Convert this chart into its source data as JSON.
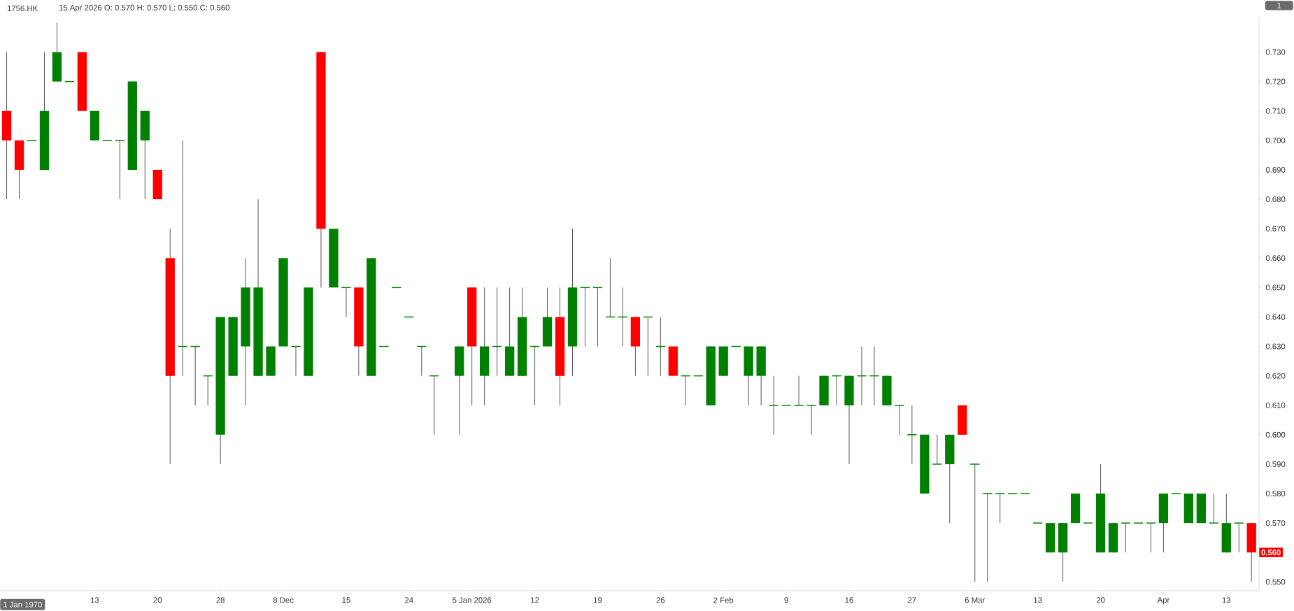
{
  "chart_data": {
    "type": "candlestick",
    "title": "1756.HK",
    "subtitle": "15 Apr 2026  O: 0.570  H: 0.570  L: 0.550  C: 0.560",
    "categories": [
      null,
      null,
      null,
      null,
      null,
      null,
      null,
      "13",
      null,
      null,
      null,
      null,
      "20",
      null,
      null,
      null,
      null,
      "28",
      null,
      null,
      null,
      null,
      "8 Dec",
      null,
      null,
      null,
      null,
      "15",
      null,
      null,
      null,
      null,
      "24",
      null,
      null,
      null,
      null,
      "5 Jan 2026",
      null,
      null,
      null,
      null,
      "12",
      null,
      null,
      null,
      null,
      "19",
      null,
      null,
      null,
      null,
      "26",
      null,
      null,
      null,
      null,
      "2 Feb",
      null,
      null,
      null,
      null,
      "9",
      null,
      null,
      null,
      null,
      "16",
      null,
      null,
      null,
      null,
      "27",
      null,
      null,
      null,
      null,
      "6 Mar",
      null,
      null,
      null,
      null,
      "13",
      null,
      null,
      null,
      null,
      "20",
      null,
      null,
      null,
      null,
      "Apr",
      null,
      null,
      null,
      null,
      "13",
      null,
      null
    ],
    "ohlc": [
      [
        0.71,
        0.73,
        0.68,
        0.7
      ],
      [
        0.7,
        0.7,
        0.68,
        0.69
      ],
      [
        0.7,
        0.7,
        0.7,
        0.7
      ],
      [
        0.69,
        0.73,
        0.69,
        0.71
      ],
      [
        0.72,
        0.74,
        0.72,
        0.73
      ],
      [
        0.72,
        0.72,
        0.72,
        0.72
      ],
      [
        0.73,
        0.73,
        0.71,
        0.71
      ],
      [
        0.7,
        0.71,
        0.7,
        0.71
      ],
      [
        0.7,
        0.7,
        0.7,
        0.7
      ],
      [
        0.7,
        0.7,
        0.68,
        0.7
      ],
      [
        0.69,
        0.72,
        0.69,
        0.72
      ],
      [
        0.7,
        0.71,
        0.68,
        0.71
      ],
      [
        0.69,
        0.69,
        0.68,
        0.68
      ],
      [
        0.66,
        0.67,
        0.59,
        0.62
      ],
      [
        0.63,
        0.7,
        0.62,
        0.63
      ],
      [
        0.63,
        0.63,
        0.61,
        0.63
      ],
      [
        0.62,
        0.62,
        0.61,
        0.62
      ],
      [
        0.6,
        0.64,
        0.59,
        0.64
      ],
      [
        0.62,
        0.64,
        0.62,
        0.64
      ],
      [
        0.63,
        0.66,
        0.61,
        0.65
      ],
      [
        0.62,
        0.68,
        0.62,
        0.65
      ],
      [
        0.62,
        0.63,
        0.62,
        0.63
      ],
      [
        0.63,
        0.66,
        0.63,
        0.66
      ],
      [
        0.63,
        0.63,
        0.62,
        0.63
      ],
      [
        0.62,
        0.65,
        0.62,
        0.65
      ],
      [
        0.73,
        0.73,
        0.65,
        0.67
      ],
      [
        0.65,
        0.67,
        0.65,
        0.67
      ],
      [
        0.65,
        0.65,
        0.64,
        0.65
      ],
      [
        0.65,
        0.65,
        0.62,
        0.63
      ],
      [
        0.62,
        0.66,
        0.62,
        0.66
      ],
      [
        0.63,
        0.63,
        0.63,
        0.63
      ],
      [
        0.65,
        0.65,
        0.65,
        0.65
      ],
      [
        0.64,
        0.64,
        0.64,
        0.64
      ],
      [
        0.63,
        0.63,
        0.62,
        0.63
      ],
      [
        0.62,
        0.62,
        0.6,
        0.62
      ],
      null,
      [
        0.62,
        0.63,
        0.6,
        0.63
      ],
      [
        0.65,
        0.65,
        0.61,
        0.63
      ],
      [
        0.62,
        0.65,
        0.61,
        0.63
      ],
      [
        0.63,
        0.65,
        0.62,
        0.63
      ],
      [
        0.62,
        0.65,
        0.62,
        0.63
      ],
      [
        0.62,
        0.65,
        0.62,
        0.64
      ],
      [
        0.63,
        0.63,
        0.61,
        0.63
      ],
      [
        0.63,
        0.65,
        0.63,
        0.64
      ],
      [
        0.64,
        0.65,
        0.61,
        0.62
      ],
      [
        0.63,
        0.67,
        0.62,
        0.65
      ],
      [
        0.65,
        0.65,
        0.63,
        0.65
      ],
      [
        0.65,
        0.65,
        0.63,
        0.65
      ],
      [
        0.64,
        0.66,
        0.64,
        0.64
      ],
      [
        0.64,
        0.65,
        0.63,
        0.64
      ],
      [
        0.64,
        0.64,
        0.62,
        0.63
      ],
      [
        0.64,
        0.64,
        0.62,
        0.64
      ],
      [
        0.63,
        0.64,
        0.62,
        0.63
      ],
      [
        0.63,
        0.63,
        0.62,
        0.62
      ],
      [
        0.62,
        0.62,
        0.61,
        0.62
      ],
      [
        0.62,
        0.62,
        0.62,
        0.62
      ],
      [
        0.61,
        0.63,
        0.61,
        0.63
      ],
      [
        0.62,
        0.63,
        0.62,
        0.63
      ],
      [
        0.63,
        0.63,
        0.63,
        0.63
      ],
      [
        0.62,
        0.63,
        0.61,
        0.63
      ],
      [
        0.62,
        0.63,
        0.61,
        0.63
      ],
      [
        0.61,
        0.62,
        0.6,
        0.61
      ],
      [
        0.61,
        0.61,
        0.61,
        0.61
      ],
      [
        0.61,
        0.62,
        0.61,
        0.61
      ],
      [
        0.61,
        0.61,
        0.6,
        0.61
      ],
      [
        0.61,
        0.62,
        0.61,
        0.62
      ],
      [
        0.62,
        0.62,
        0.61,
        0.62
      ],
      [
        0.61,
        0.62,
        0.59,
        0.62
      ],
      [
        0.62,
        0.63,
        0.61,
        0.62
      ],
      [
        0.62,
        0.63,
        0.61,
        0.62
      ],
      [
        0.61,
        0.62,
        0.61,
        0.62
      ],
      [
        0.61,
        0.61,
        0.6,
        0.61
      ],
      [
        0.6,
        0.61,
        0.59,
        0.6
      ],
      [
        0.58,
        0.6,
        0.58,
        0.6
      ],
      [
        0.59,
        0.6,
        0.59,
        0.59
      ],
      [
        0.59,
        0.6,
        0.57,
        0.6
      ],
      [
        0.61,
        0.61,
        0.6,
        0.6
      ],
      [
        0.59,
        0.59,
        0.55,
        0.59
      ],
      [
        0.58,
        0.58,
        0.55,
        0.58
      ],
      [
        0.58,
        0.58,
        0.57,
        0.58
      ],
      [
        0.58,
        0.58,
        0.58,
        0.58
      ],
      [
        0.58,
        0.58,
        0.58,
        0.58
      ],
      [
        0.57,
        0.57,
        0.57,
        0.57
      ],
      [
        0.56,
        0.57,
        0.56,
        0.57
      ],
      [
        0.56,
        0.57,
        0.55,
        0.57
      ],
      [
        0.57,
        0.58,
        0.57,
        0.58
      ],
      [
        0.57,
        0.57,
        0.57,
        0.57
      ],
      [
        0.56,
        0.59,
        0.56,
        0.58
      ],
      [
        0.56,
        0.57,
        0.56,
        0.57
      ],
      [
        0.57,
        0.57,
        0.56,
        0.57
      ],
      [
        0.57,
        0.57,
        0.57,
        0.57
      ],
      [
        0.57,
        0.57,
        0.56,
        0.57
      ],
      [
        0.57,
        0.58,
        0.56,
        0.58
      ],
      [
        0.58,
        0.58,
        0.58,
        0.58
      ],
      [
        0.57,
        0.58,
        0.57,
        0.58
      ],
      [
        0.57,
        0.58,
        0.57,
        0.58
      ],
      [
        0.57,
        0.58,
        0.57,
        0.57
      ],
      [
        0.56,
        0.58,
        0.56,
        0.57
      ],
      [
        0.57,
        0.57,
        0.56,
        0.57
      ],
      [
        0.57,
        0.57,
        0.55,
        0.56
      ]
    ],
    "colors": [
      "#ff0000",
      "#ff0000",
      "#008000",
      "#008000",
      "#008000",
      "#008000",
      "#ff0000",
      "#008000",
      "#008000",
      "#008000",
      "#008000",
      "#008000",
      "#ff0000",
      "#ff0000",
      "#008000",
      "#008000",
      "#008000",
      "#008000",
      "#008000",
      "#008000",
      "#008000",
      "#008000",
      "#008000",
      "#008000",
      "#008000",
      "#ff0000",
      "#008000",
      "#008000",
      "#ff0000",
      "#008000",
      "#008000",
      "#008000",
      "#008000",
      "#008000",
      "#008000",
      null,
      "#008000",
      "#ff0000",
      "#008000",
      "#008000",
      "#008000",
      "#008000",
      "#008000",
      "#008000",
      "#ff0000",
      "#008000",
      "#008000",
      "#008000",
      "#008000",
      "#008000",
      "#ff0000",
      "#008000",
      "#008000",
      "#ff0000",
      "#008000",
      "#008000",
      "#008000",
      "#008000",
      "#008000",
      "#008000",
      "#008000",
      "#008000",
      "#008000",
      "#008000",
      "#008000",
      "#008000",
      "#008000",
      "#008000",
      "#008000",
      "#008000",
      "#008000",
      "#008000",
      "#008000",
      "#008000",
      "#008000",
      "#008000",
      "#ff0000",
      "#008000",
      "#008000",
      "#008000",
      "#008000",
      "#008000",
      "#008000",
      "#008000",
      "#008000",
      "#008000",
      "#008000",
      "#008000",
      "#008000",
      "#008000",
      "#008000",
      "#008000",
      "#008000",
      "#008000",
      "#008000",
      "#008000",
      "#008000",
      "#008000",
      "#008000",
      "#ff0000"
    ],
    "ylim": [
      0.547,
      0.742
    ],
    "yticks": [
      {
        "value": 0.55,
        "label": "0.550"
      },
      {
        "value": 0.57,
        "label": "0.570"
      },
      {
        "value": 0.58,
        "label": "0.580"
      },
      {
        "value": 0.59,
        "label": "0.590"
      },
      {
        "value": 0.6,
        "label": "0.600"
      },
      {
        "value": 0.61,
        "label": "0.610"
      },
      {
        "value": 0.62,
        "label": "0.620"
      },
      {
        "value": 0.63,
        "label": "0.630"
      },
      {
        "value": 0.64,
        "label": "0.640"
      },
      {
        "value": 0.65,
        "label": "0.650"
      },
      {
        "value": 0.66,
        "label": "0.660"
      },
      {
        "value": 0.67,
        "label": "0.670"
      },
      {
        "value": 0.68,
        "label": "0.680"
      },
      {
        "value": 0.69,
        "label": "0.690"
      },
      {
        "value": 0.7,
        "label": "0.700"
      },
      {
        "value": 0.71,
        "label": "0.710"
      },
      {
        "value": 0.72,
        "label": "0.720"
      },
      {
        "value": 0.73,
        "label": "0.730"
      }
    ],
    "annotations": [
      "1 Jan 1970",
      "1",
      "0.560"
    ]
  }
}
